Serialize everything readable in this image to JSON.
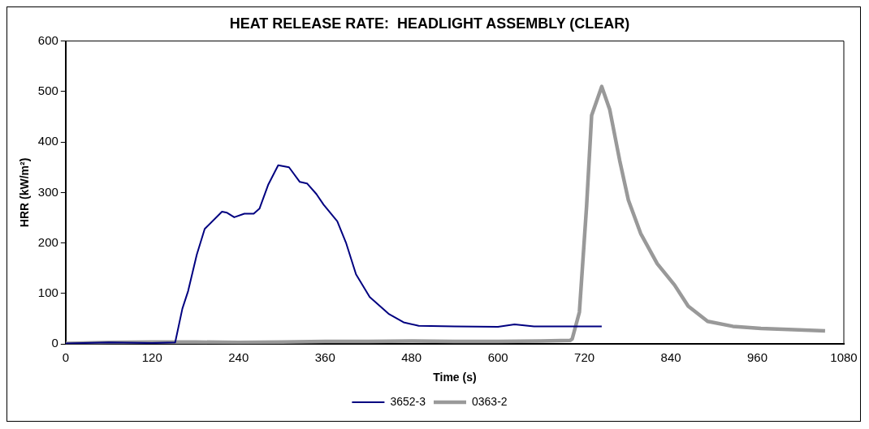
{
  "chart_data": {
    "type": "line",
    "title": "HEAT RELEASE RATE:  HEADLIGHT ASSEMBLY (CLEAR)",
    "xlabel": "Time (s)",
    "ylabel": "HRR (kW/m²)",
    "xlim": [
      0,
      1080
    ],
    "xticks": [
      0,
      120,
      240,
      360,
      480,
      600,
      720,
      840,
      960,
      1080
    ],
    "ylim": [
      0,
      600
    ],
    "yticks": [
      0,
      100,
      200,
      300,
      400,
      500,
      600
    ],
    "grid": false,
    "legend": "bottom",
    "marker": "none",
    "line_style": "solid",
    "series": [
      {
        "name": "3652-3",
        "color": "#000080",
        "x": [
          0,
          60,
          120,
          152,
          162,
          170,
          182,
          193,
          217,
          224,
          234,
          248,
          261,
          269,
          281,
          295,
          310,
          325,
          335,
          348,
          358,
          377,
          389,
          403,
          422,
          449,
          469,
          490,
          540,
          600,
          623,
          650,
          700,
          744
        ],
        "values": [
          1,
          3,
          2,
          3,
          70,
          105,
          177,
          228,
          262,
          260,
          251,
          258,
          258,
          268,
          315,
          354,
          350,
          321,
          318,
          297,
          276,
          243,
          201,
          138,
          93,
          59,
          43,
          36,
          35,
          34,
          39,
          35,
          35,
          35
        ]
      },
      {
        "name": "0363-2",
        "color": "#999999",
        "x": [
          0,
          60,
          120,
          180,
          240,
          300,
          360,
          420,
          480,
          540,
          600,
          660,
          700,
          703,
          713,
          723,
          730,
          744,
          755,
          769,
          781,
          798,
          821,
          845,
          864,
          891,
          926,
          965,
          1003,
          1054
        ],
        "values": [
          1,
          3,
          4,
          4,
          3,
          4,
          5,
          5,
          6,
          5,
          5,
          6,
          7,
          10,
          63,
          273,
          453,
          510,
          465,
          363,
          285,
          219,
          159,
          117,
          75,
          45,
          35,
          31,
          29,
          26
        ]
      }
    ]
  }
}
